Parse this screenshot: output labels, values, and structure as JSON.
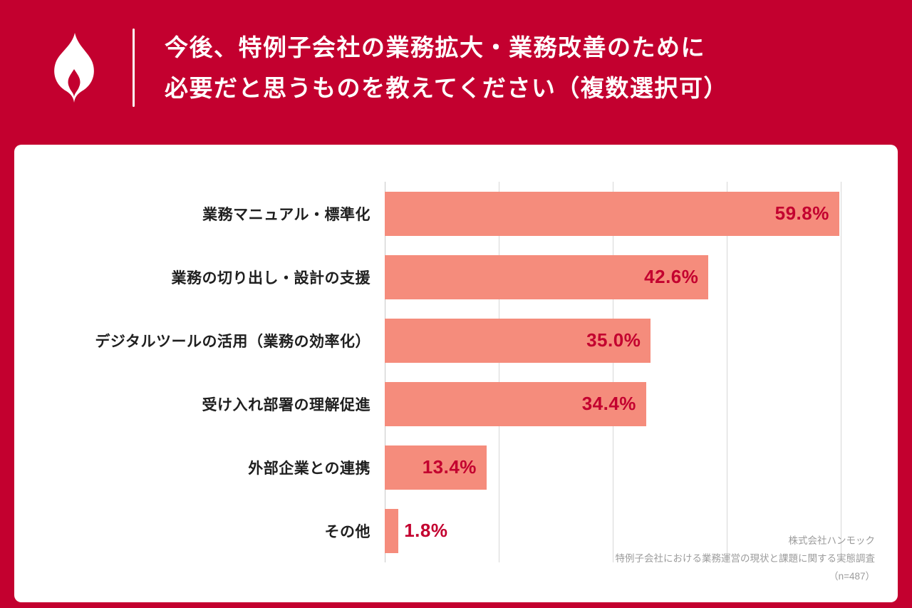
{
  "header": {
    "title_line1": "今後、特例子会社の業務拡大・業務改善のために",
    "title_line2": "必要だと思うものを教えてください（複数選択可）"
  },
  "colors": {
    "background_red": "#C3002F",
    "bar_fill": "#F58C7C",
    "value_label_red": "#C3002F",
    "gridline": "#D8D8D8",
    "card_background": "#FFFFFF"
  },
  "icons": {
    "flame_icon": "flame"
  },
  "chart_data": {
    "type": "bar",
    "orientation": "horizontal",
    "title": "今後、特例子会社の業務拡大・業務改善のために必要だと思うものを教えてください（複数選択可）",
    "categories": [
      "業務マニュアル・標準化",
      "業務の切り出し・設計の支援",
      "デジタルツールの活用（業務の効率化）",
      "受け入れ部署の理解促進",
      "外部企業との連携",
      "その他"
    ],
    "values": [
      59.8,
      42.6,
      35.0,
      34.4,
      13.4,
      1.8
    ],
    "value_labels": [
      "59.8%",
      "42.6%",
      "35.0%",
      "34.4%",
      "13.4%",
      "1.8%"
    ],
    "xlabel": "",
    "ylabel": "",
    "xlim": [
      0,
      60
    ],
    "gridlines": [
      0,
      15,
      30,
      45,
      60
    ],
    "grid": true,
    "legend": false
  },
  "footer": {
    "lines": [
      "株式会社ハンモック",
      "特例子会社における業務運営の現状と課題に関する実態調査",
      "（n=487）"
    ]
  }
}
